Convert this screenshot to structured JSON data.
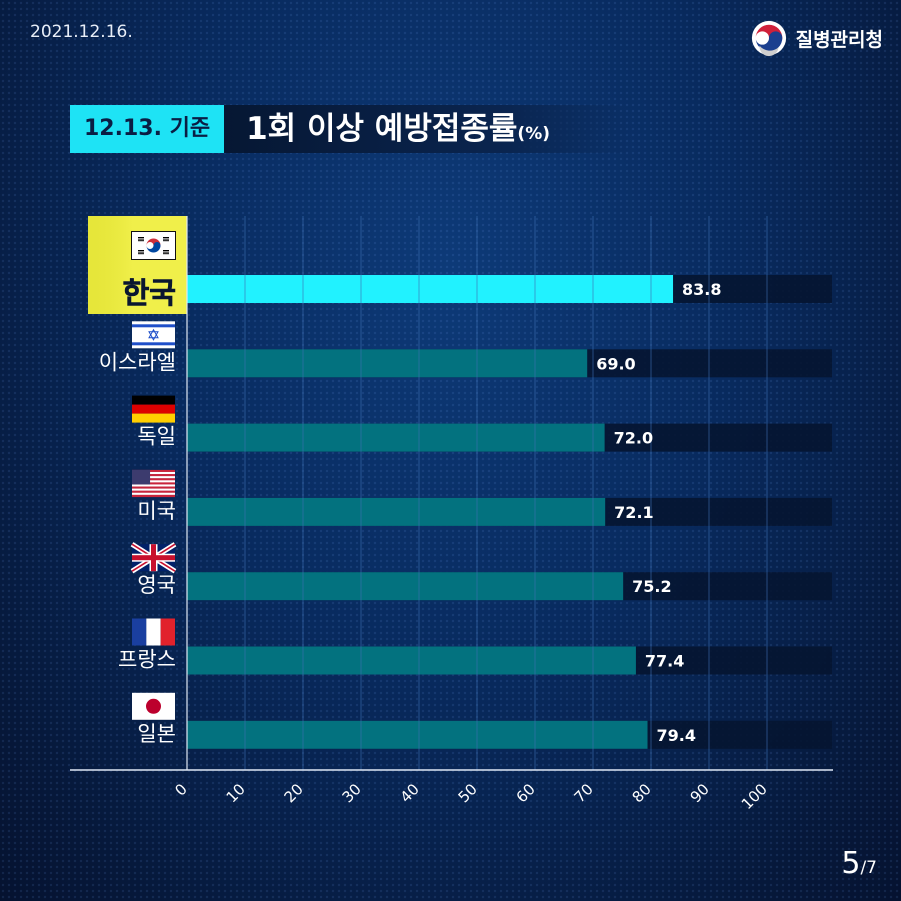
{
  "date": "2021.12.16.",
  "logo": {
    "name": "질병관리청",
    "icon": "taegeuk-logo-icon"
  },
  "title": {
    "date_label": "12.13. 기준",
    "main": "1회 이상 예방접종률",
    "unit": "(%)"
  },
  "page": {
    "current": "5",
    "total": "/7"
  },
  "colors": {
    "highlight_bar": "#21f2ff",
    "bar": "#03727f",
    "track": "#051531",
    "date_box": "#1ee3f5",
    "korea_label_bg": "#e6e63a"
  },
  "chart_data": {
    "type": "bar",
    "orientation": "horizontal",
    "categories": [
      "한국",
      "이스라엘",
      "독일",
      "미국",
      "영국",
      "프랑스",
      "일본"
    ],
    "flags": [
      "korea-flag-icon",
      "israel-flag-icon",
      "germany-flag-icon",
      "usa-flag-icon",
      "uk-flag-icon",
      "france-flag-icon",
      "japan-flag-icon"
    ],
    "values": [
      83.8,
      69.0,
      72.0,
      72.1,
      75.2,
      77.4,
      79.4
    ],
    "value_labels": [
      "83.8",
      "69.0",
      "72.0",
      "72.1",
      "75.2",
      "77.4",
      "79.4"
    ],
    "highlight": "한국",
    "xlim": [
      0,
      100
    ],
    "xticks": [
      "0",
      "10",
      "20",
      "30",
      "40",
      "50",
      "60",
      "70",
      "80",
      "90",
      "100"
    ],
    "grid": true
  }
}
